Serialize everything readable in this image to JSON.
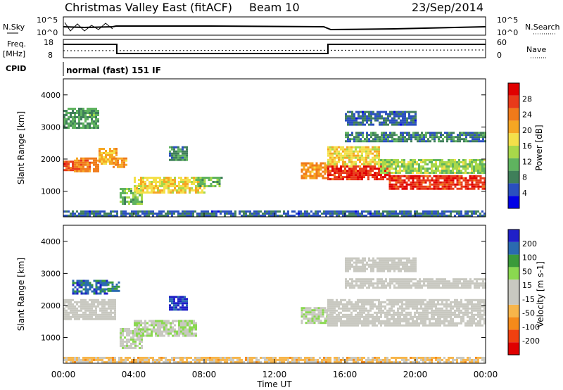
{
  "header": {
    "title": "Christmas Valley East (fitACF)",
    "beam": "Beam 10",
    "date": "23/Sep/2014"
  },
  "panels": {
    "nsky": {
      "label": "N.Sky",
      "right_label": "N.Search",
      "left_ticks": [
        "10^5",
        "10^0"
      ],
      "right_ticks": [
        "10^5",
        "10^0"
      ]
    },
    "freq": {
      "label_line1": "Freq.",
      "label_line2": "[MHz]",
      "right_label": "Nave",
      "left_ticks": [
        "18",
        "8"
      ],
      "right_ticks": [
        "60",
        "0"
      ]
    },
    "cpid": {
      "label": "CPID",
      "text": "normal (fast) 151 IF"
    }
  },
  "colors": {
    "power": [
      "#0000e6",
      "#2a4fbf",
      "#3f7f5a",
      "#5fb35f",
      "#a8d84a",
      "#f4e04a",
      "#f6a623",
      "#f07a1a",
      "#e83a1a",
      "#e00000"
    ],
    "velocity": [
      "#e00000",
      "#f04010",
      "#f58a1a",
      "#f7b54a",
      "#c8c8c0",
      "#c8c8c0",
      "#8ad850",
      "#3a9a3a",
      "#2a6ab0",
      "#2020c8"
    ]
  },
  "chart_data": [
    {
      "type": "heatmap",
      "name": "power",
      "ylabel": "Slant Range [km]",
      "yticks": [
        "1000",
        "2000",
        "3000",
        "4000"
      ],
      "ylim": [
        200,
        4500
      ],
      "xlim": [
        0,
        24
      ],
      "colorbar": {
        "label": "Power [dB]",
        "ticks": [
          "4",
          "8",
          "12",
          "16",
          "20",
          "24",
          "28"
        ],
        "range": [
          0,
          32
        ]
      },
      "bands": [
        {
          "x": [
            0.0,
            0.6
          ],
          "center": 1800,
          "halfwidth": 150,
          "value": 26
        },
        {
          "x": [
            0.6,
            2.0
          ],
          "center": 1850,
          "halfwidth": 200,
          "value": 24
        },
        {
          "x": [
            2.0,
            3.0
          ],
          "center": 2100,
          "halfwidth": 250,
          "value": 20
        },
        {
          "x": [
            0.0,
            2.0
          ],
          "center": 3300,
          "halfwidth": 300,
          "value": 10
        },
        {
          "x": [
            2.8,
            3.6
          ],
          "center": 1900,
          "halfwidth": 150,
          "value": 22
        },
        {
          "x": [
            3.2,
            4.5
          ],
          "center": 850,
          "halfwidth": 250,
          "value": 12
        },
        {
          "x": [
            4.0,
            8.0
          ],
          "center": 1200,
          "halfwidth": 250,
          "value": 18
        },
        {
          "x": [
            6.0,
            7.0
          ],
          "center": 2200,
          "halfwidth": 200,
          "value": 8
        },
        {
          "x": [
            7.5,
            9.0
          ],
          "center": 1300,
          "halfwidth": 150,
          "value": 12
        },
        {
          "x": [
            13.5,
            15.0
          ],
          "center": 1650,
          "halfwidth": 250,
          "value": 22
        },
        {
          "x": [
            15.0,
            18.0
          ],
          "center": 2100,
          "halfwidth": 300,
          "value": 18
        },
        {
          "x": [
            15.0,
            18.5
          ],
          "center": 1600,
          "halfwidth": 200,
          "value": 28
        },
        {
          "x": [
            18.5,
            24.0
          ],
          "center": 1300,
          "halfwidth": 200,
          "value": 28
        },
        {
          "x": [
            18.0,
            24.0
          ],
          "center": 1800,
          "halfwidth": 200,
          "value": 14
        },
        {
          "x": [
            16.0,
            24.0
          ],
          "center": 2700,
          "halfwidth": 150,
          "value": 8
        },
        {
          "x": [
            16.0,
            20.0
          ],
          "center": 3300,
          "halfwidth": 200,
          "value": 6
        },
        {
          "x": [
            0.0,
            24.0
          ],
          "center": 320,
          "halfwidth": 80,
          "value": 6
        }
      ]
    },
    {
      "type": "heatmap",
      "name": "velocity",
      "ylabel": "Slant Range [km]",
      "yticks": [
        "1000",
        "2000",
        "3000",
        "4000"
      ],
      "ylim": [
        200,
        4500
      ],
      "xlim": [
        0,
        24
      ],
      "xticks": [
        "00:00",
        "04:00",
        "08:00",
        "12:00",
        "16:00",
        "20:00",
        "00:00"
      ],
      "xlabel": "Time UT",
      "colorbar": {
        "label": "Velocity [m s-1]",
        "ticks": [
          "200",
          "100",
          "50",
          "15",
          "-15",
          "-50",
          "-100",
          "-200"
        ],
        "range": [
          -250,
          250
        ]
      },
      "bands": [
        {
          "x": [
            0.0,
            3.0
          ],
          "center": 1900,
          "halfwidth": 300,
          "value": 0
        },
        {
          "x": [
            0.5,
            2.5
          ],
          "center": 2600,
          "halfwidth": 200,
          "value": 180
        },
        {
          "x": [
            2.5,
            3.2
          ],
          "center": 2600,
          "halfwidth": 150,
          "value": 150
        },
        {
          "x": [
            3.2,
            4.5
          ],
          "center": 1000,
          "halfwidth": 300,
          "value": 30
        },
        {
          "x": [
            4.0,
            7.5
          ],
          "center": 1300,
          "halfwidth": 250,
          "value": 40
        },
        {
          "x": [
            6.0,
            7.0
          ],
          "center": 2100,
          "halfwidth": 200,
          "value": 200
        },
        {
          "x": [
            13.5,
            15.0
          ],
          "center": 1700,
          "halfwidth": 250,
          "value": 30
        },
        {
          "x": [
            15.0,
            24.0
          ],
          "center": 1800,
          "halfwidth": 400,
          "value": 0
        },
        {
          "x": [
            16.0,
            24.0
          ],
          "center": 2700,
          "halfwidth": 150,
          "value": 0
        },
        {
          "x": [
            16.0,
            20.0
          ],
          "center": 3300,
          "halfwidth": 200,
          "value": 0
        },
        {
          "x": [
            0.0,
            24.0
          ],
          "center": 320,
          "halfwidth": 80,
          "value": -60
        }
      ]
    }
  ]
}
